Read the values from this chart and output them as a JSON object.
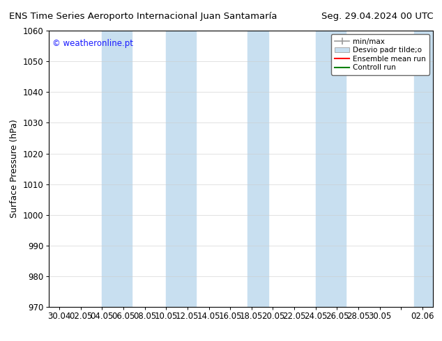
{
  "title_left": "ENS Time Series Aeroporto Internacional Juan Santamaría",
  "title_right": "Seg. 29.04.2024 00 UTC",
  "ylabel": "Surface Pressure (hPa)",
  "ylim": [
    970,
    1060
  ],
  "yticks": [
    970,
    980,
    990,
    1000,
    1010,
    1020,
    1030,
    1040,
    1050,
    1060
  ],
  "xtick_labels": [
    "30.04",
    "02.05",
    "04.05",
    "06.05",
    "08.05",
    "10.05",
    "12.05",
    "14.05",
    "16.05",
    "18.05",
    "20.05",
    "22.05",
    "24.05",
    "26.05",
    "28.05",
    "30.05",
    "",
    "02.06"
  ],
  "watermark": "© weatheronline.pt",
  "watermark_color": "#1a1aff",
  "background_color": "#ffffff",
  "plot_bg_color": "#ffffff",
  "shaded_band_color": "#c8dff0",
  "shaded_band_alpha": 1.0,
  "legend_labels": [
    "min/max",
    "Desvio padr tilde;o",
    "Ensemble mean run",
    "Controll run"
  ],
  "title_fontsize": 9.5,
  "tick_fontsize": 8.5,
  "ylabel_fontsize": 9
}
